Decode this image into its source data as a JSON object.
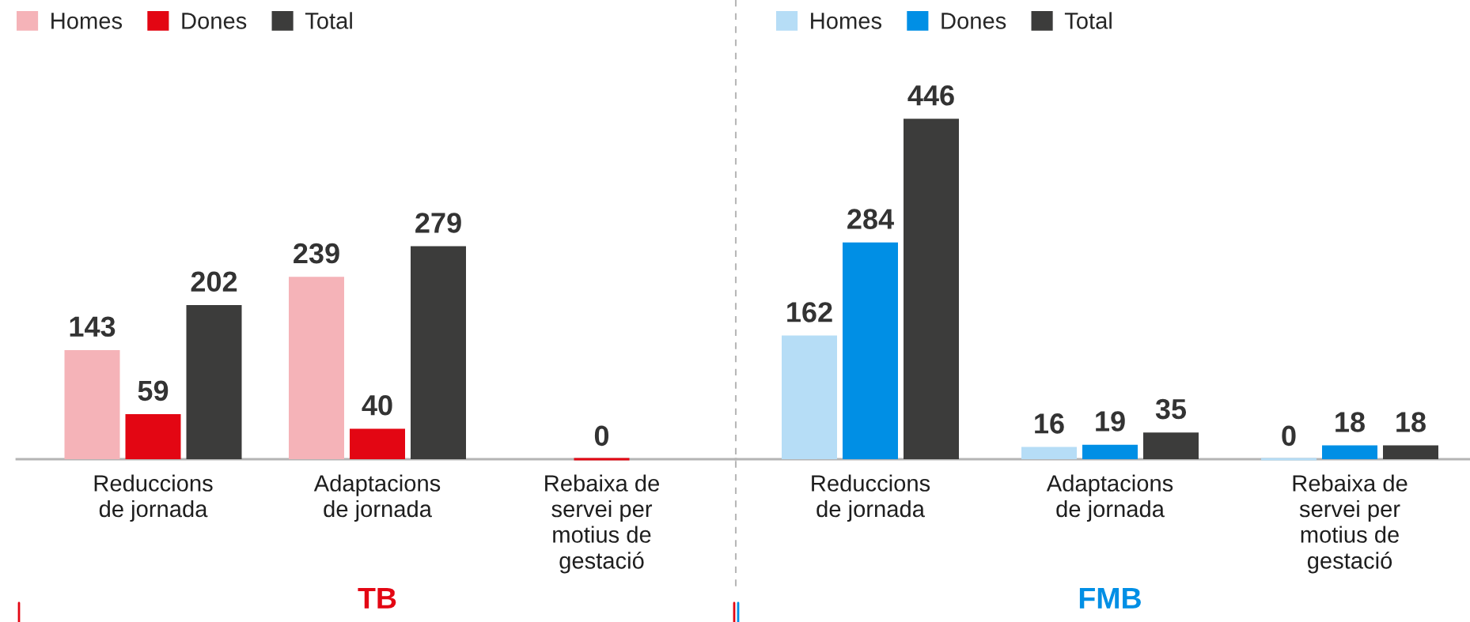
{
  "chart_data": [
    {
      "type": "bar",
      "title": "TB",
      "categories": [
        "Reduccions de jornada",
        "Adaptacions de jornada",
        "Rebaixa de servei per motius de gestació"
      ],
      "series": [
        {
          "name": "Homes",
          "color": "#f5b3b8",
          "values": [
            143,
            239,
            null
          ]
        },
        {
          "name": "Dones",
          "color": "#e30613",
          "values": [
            59,
            40,
            0
          ]
        },
        {
          "name": "Total",
          "color": "#3c3c3b",
          "values": [
            202,
            279,
            null
          ]
        }
      ],
      "data_labels": true,
      "legend": "top left",
      "tick_labels": "x"
    },
    {
      "type": "bar",
      "title": "FMB",
      "categories": [
        "Reduccions de jornada",
        "Adaptacions de jornada",
        "Rebaixa de servei per motius de gestació"
      ],
      "series": [
        {
          "name": "Homes",
          "color": "#b6ddf6",
          "values": [
            162,
            16,
            0
          ]
        },
        {
          "name": "Dones",
          "color": "#008fe5",
          "values": [
            284,
            19,
            18
          ]
        },
        {
          "name": "Total",
          "color": "#3c3c3b",
          "values": [
            446,
            35,
            18
          ]
        }
      ],
      "data_labels": true,
      "legend": "top left",
      "tick_labels": "x"
    }
  ]
}
